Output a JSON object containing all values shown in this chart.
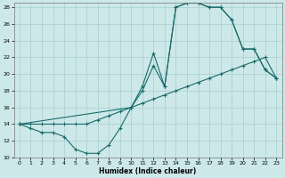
{
  "xlabel": "Humidex (Indice chaleur)",
  "bg_color": "#cce8e8",
  "line_color": "#1a6b6b",
  "grid_color": "#aacece",
  "xlim": [
    -0.5,
    23.5
  ],
  "ylim": [
    10,
    28.5
  ],
  "xticks": [
    0,
    1,
    2,
    3,
    4,
    5,
    6,
    7,
    8,
    9,
    10,
    11,
    12,
    13,
    14,
    15,
    16,
    17,
    18,
    19,
    20,
    21,
    22,
    23
  ],
  "yticks": [
    10,
    12,
    14,
    16,
    18,
    20,
    22,
    24,
    26,
    28
  ],
  "curve1_x": [
    0,
    1,
    2,
    3,
    4,
    5,
    6,
    7,
    8,
    9,
    10,
    11,
    12,
    13,
    14,
    15,
    16,
    17,
    18,
    19,
    20,
    21,
    22,
    23
  ],
  "curve1_y": [
    14,
    13.5,
    13,
    13,
    12.5,
    11,
    10.5,
    10.5,
    11.5,
    13.5,
    16,
    18.5,
    22.5,
    18.5,
    28,
    28.5,
    28.5,
    28,
    28,
    26.5,
    23,
    23,
    20.5,
    19.5
  ],
  "curve2_x": [
    0,
    1,
    2,
    3,
    4,
    5,
    6,
    7,
    8,
    9,
    10,
    11,
    12,
    13,
    14,
    15,
    16,
    17,
    18,
    19,
    20,
    21,
    22,
    23
  ],
  "curve2_y": [
    14,
    14,
    14,
    14,
    14,
    14,
    14,
    14.5,
    15,
    15.5,
    16,
    16.5,
    17,
    17.5,
    18,
    18.5,
    19,
    19.5,
    20,
    20.5,
    21,
    21.5,
    22,
    19.5
  ],
  "curve3_x": [
    0,
    10,
    11,
    12,
    13,
    14,
    15,
    16,
    17,
    18,
    19,
    20,
    21,
    22,
    23
  ],
  "curve3_y": [
    14,
    16,
    18,
    21,
    18.5,
    28,
    28.5,
    28.5,
    28,
    28,
    26.5,
    23,
    23,
    20.5,
    19.5
  ]
}
